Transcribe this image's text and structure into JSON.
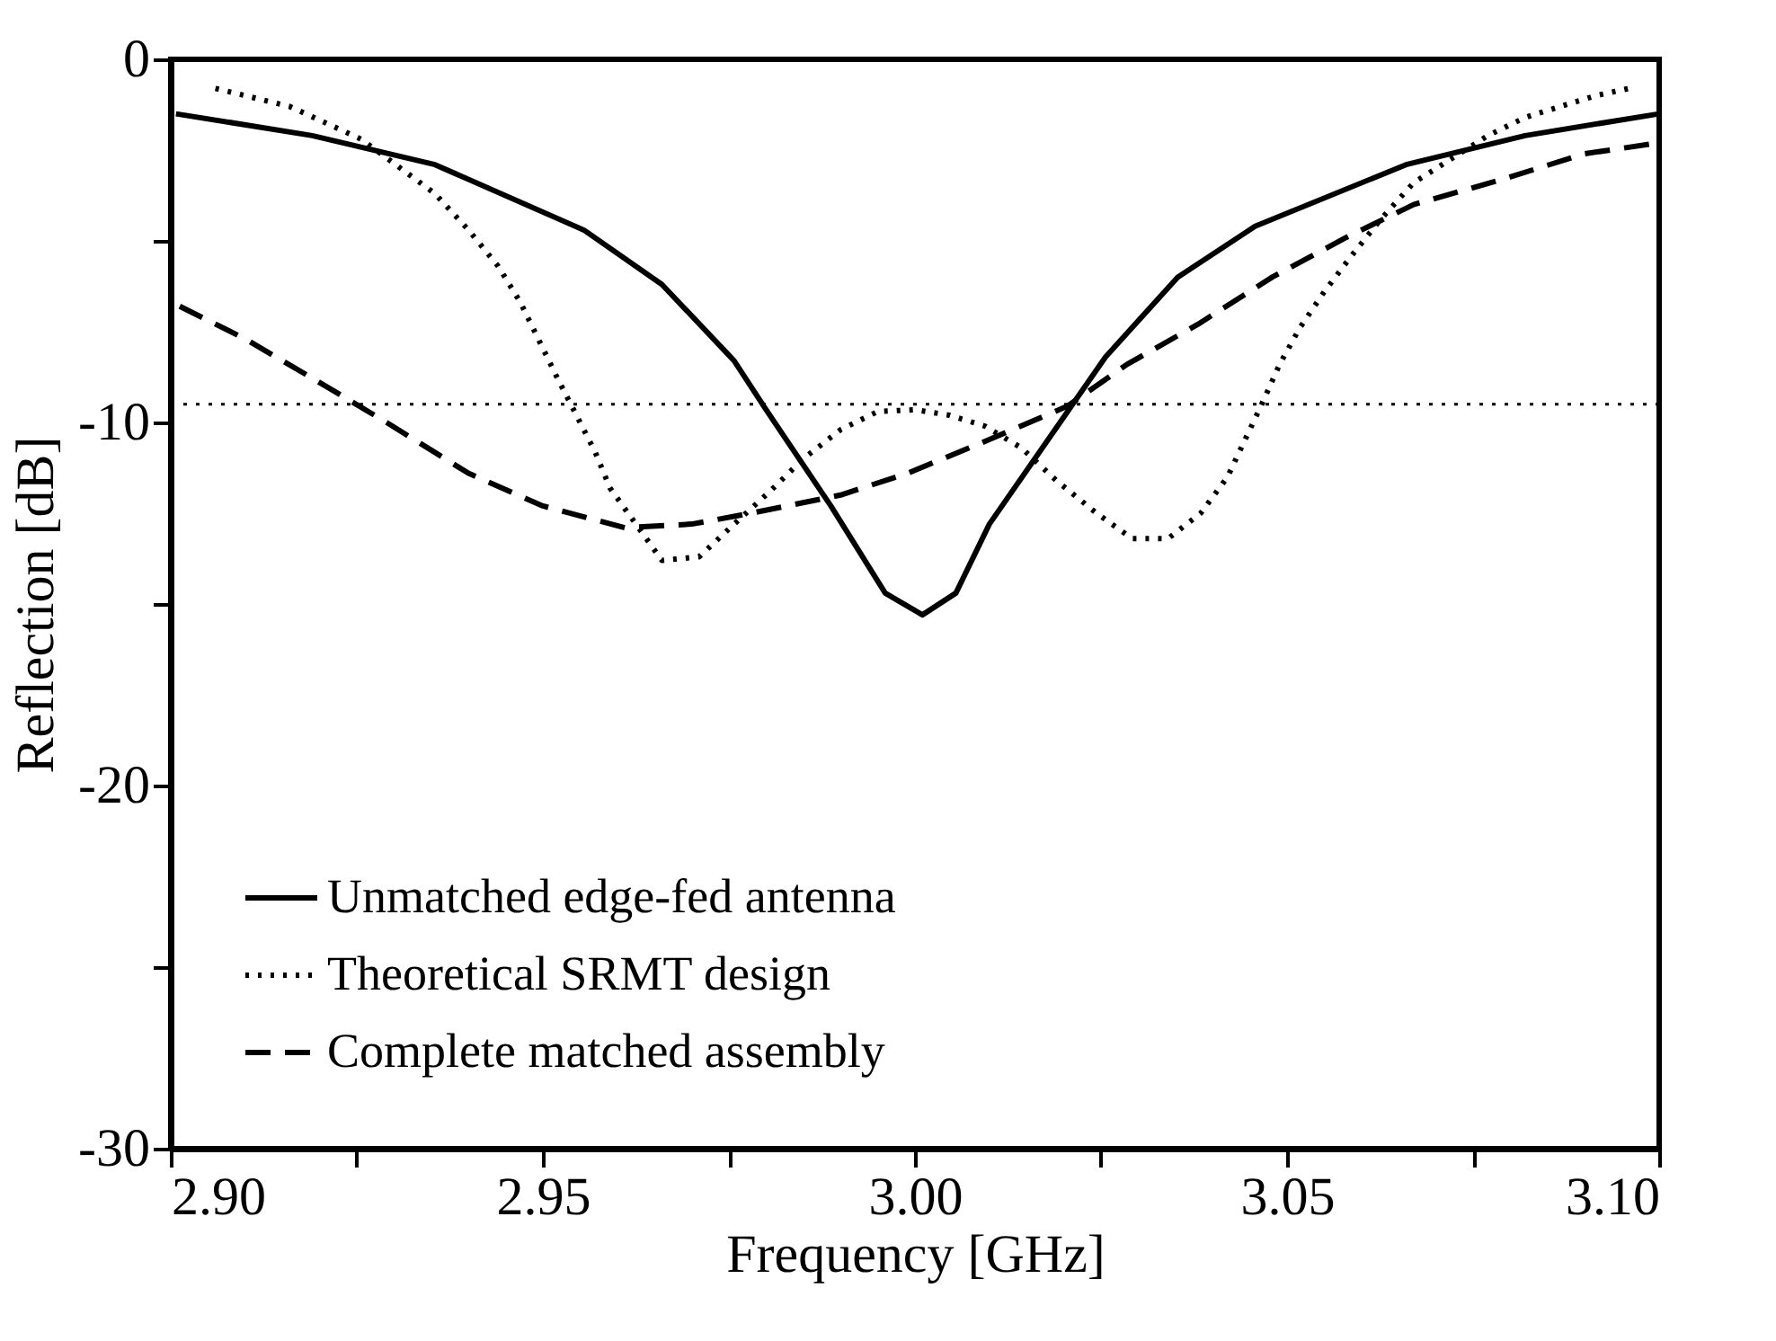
{
  "chart_data": {
    "type": "line",
    "xlabel": "Frequency [GHz]",
    "ylabel": "Reflection [dB]",
    "xlim": [
      2.9,
      3.1
    ],
    "ylim": [
      -30,
      0
    ],
    "xticks": [
      {
        "value": 2.9,
        "label": "2.90"
      },
      {
        "value": 2.925,
        "label": null
      },
      {
        "value": 2.95,
        "label": "2.95"
      },
      {
        "value": 2.975,
        "label": null
      },
      {
        "value": 3.0,
        "label": "3.00"
      },
      {
        "value": 3.025,
        "label": null
      },
      {
        "value": 3.05,
        "label": "3.05"
      },
      {
        "value": 3.075,
        "label": null
      },
      {
        "value": 3.1,
        "label": "3.10"
      }
    ],
    "yticks": [
      0,
      {
        "value": -5,
        "label": null
      },
      -10,
      {
        "value": -15,
        "label": null
      },
      -20,
      {
        "value": -25,
        "label": null
      },
      -30
    ],
    "grid": false,
    "legend": "bottom left",
    "marker": "none",
    "ref_lines": [
      {
        "axis": "y",
        "value": -9.5,
        "color": "#000000",
        "line_style": "dotted"
      }
    ],
    "series": [
      {
        "name": "Unmatched edge-fed antenna",
        "color": "#000000",
        "line_style": "solid",
        "x": [
          2.9007,
          2.919,
          2.9355,
          2.9555,
          2.966,
          2.9757,
          2.98,
          2.9887,
          2.996,
          3.001,
          3.0055,
          3.01,
          3.0256,
          3.0353,
          3.0457,
          3.066,
          3.082,
          3.1
        ],
        "values": [
          -1.5,
          -2.1,
          -2.9,
          -4.7,
          -6.2,
          -8.3,
          -9.65,
          -12.3,
          -14.7,
          -15.3,
          -14.7,
          -12.8,
          -8.2,
          -6.0,
          -4.6,
          -2.9,
          -2.1,
          -1.5
        ]
      },
      {
        "name": "Theoretical SRMT design",
        "color": "#000000",
        "line_style": "dotted",
        "x": [
          2.906,
          2.916,
          2.9256,
          2.9355,
          2.94,
          2.944,
          2.947,
          2.952,
          2.957,
          2.959,
          2.966,
          2.971,
          2.9757,
          2.9805,
          2.985,
          2.99,
          2.995,
          3.0,
          3.0046,
          3.0094,
          3.0143,
          3.019,
          3.0244,
          3.0292,
          3.034,
          3.0384,
          3.042,
          3.0443,
          3.0466,
          3.049,
          3.0517,
          3.055,
          3.0587,
          3.0626,
          3.067,
          3.077,
          3.082,
          3.0867,
          3.0915,
          3.096
        ],
        "values": [
          -0.8,
          -1.3,
          -2.2,
          -3.7,
          -4.7,
          -5.7,
          -6.7,
          -8.8,
          -10.8,
          -11.8,
          -13.8,
          -13.7,
          -12.8,
          -11.9,
          -11.0,
          -10.2,
          -9.7,
          -9.65,
          -9.8,
          -10.1,
          -10.7,
          -11.6,
          -12.5,
          -13.2,
          -13.2,
          -12.5,
          -11.5,
          -10.5,
          -9.5,
          -8.4,
          -7.4,
          -6.4,
          -5.4,
          -4.4,
          -3.4,
          -2.1,
          -1.6,
          -1.3,
          -1.0,
          -0.8
        ]
      },
      {
        "name": "Complete matched assembly",
        "color": "#000000",
        "line_style": "dashed",
        "x": [
          2.9012,
          2.91,
          2.92,
          2.929,
          2.94,
          2.95,
          2.961,
          2.97,
          2.978,
          2.99,
          2.999,
          3.0085,
          3.0205,
          3.0285,
          3.038,
          3.048,
          3.058,
          3.067,
          3.079,
          3.09,
          3.1
        ],
        "values": [
          -6.8,
          -7.7,
          -8.9,
          -10.0,
          -11.4,
          -12.3,
          -12.9,
          -12.8,
          -12.5,
          -12.0,
          -11.4,
          -10.6,
          -9.55,
          -8.4,
          -7.3,
          -6.0,
          -4.9,
          -4.0,
          -3.3,
          -2.6,
          -2.3
        ]
      }
    ]
  }
}
